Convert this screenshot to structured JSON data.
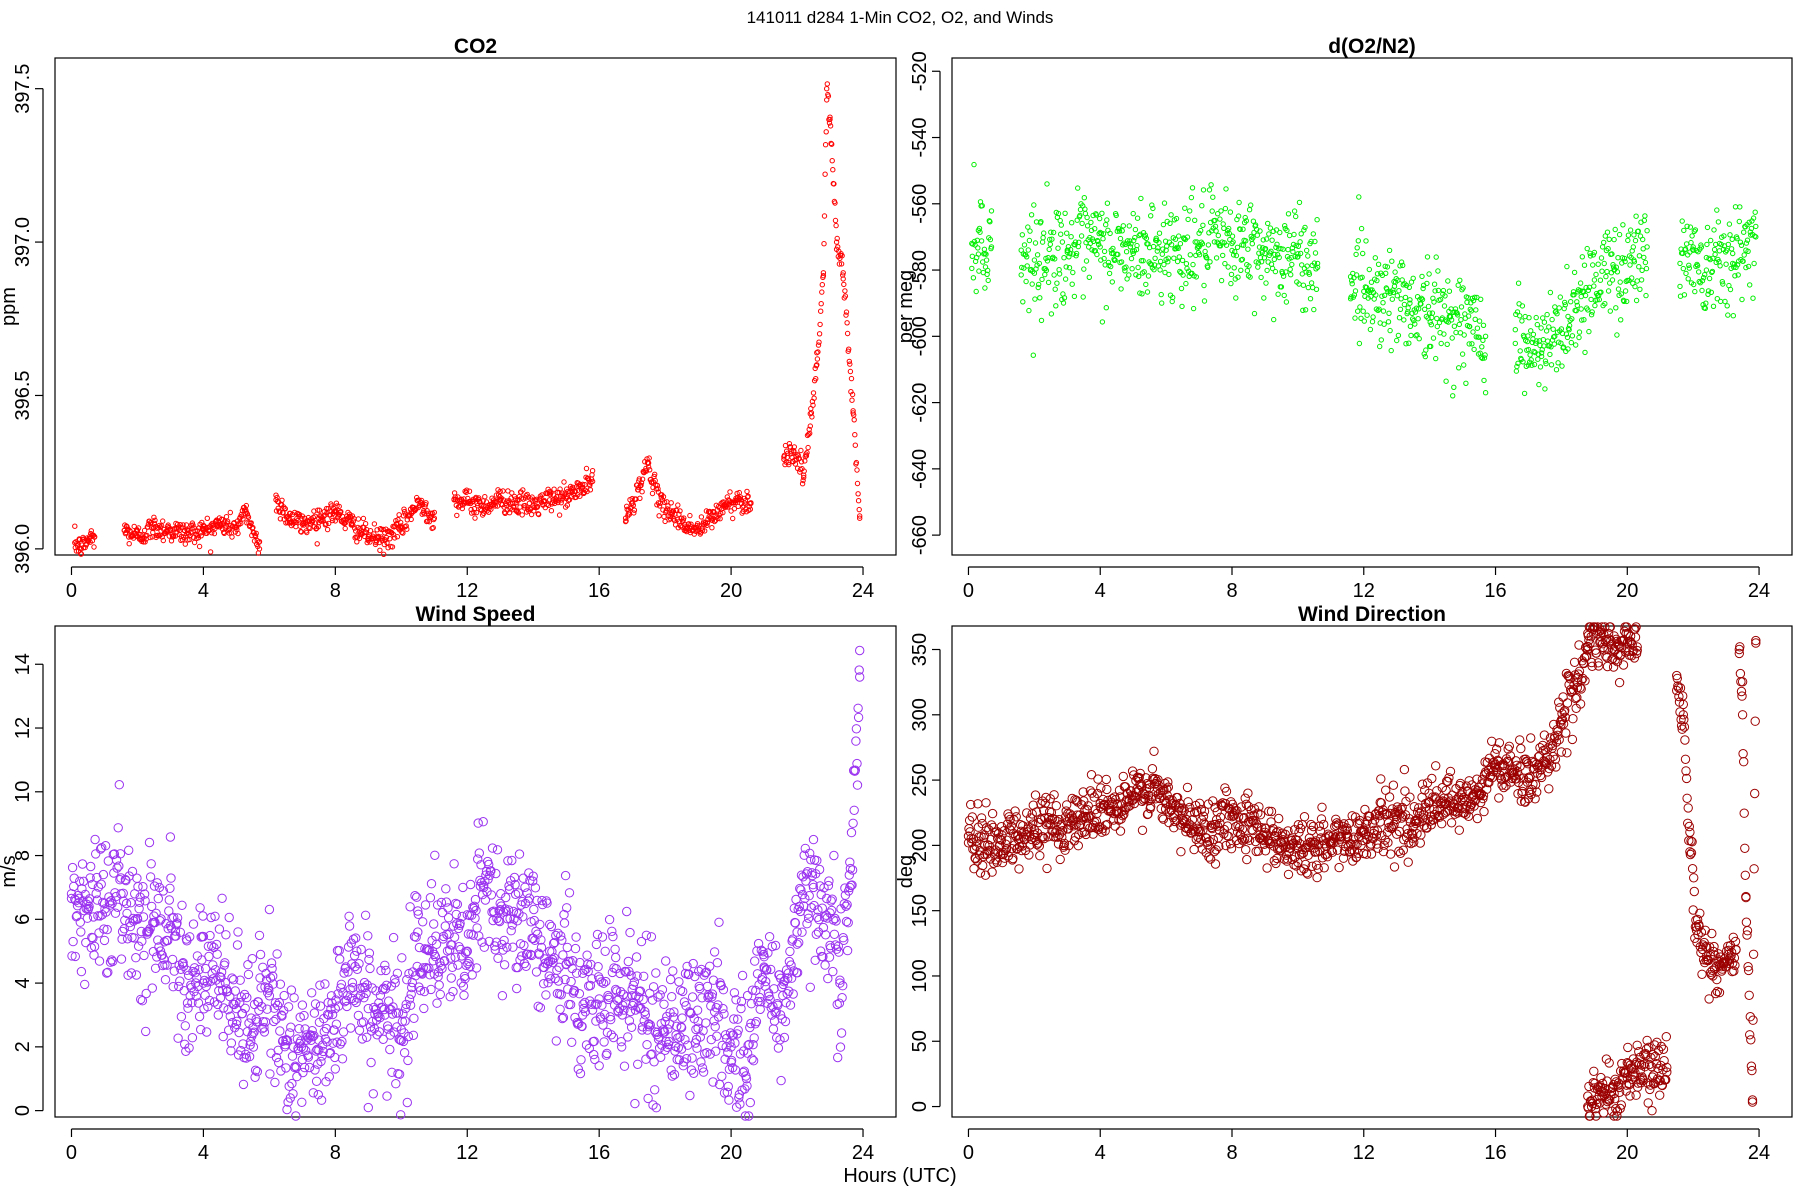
{
  "figure": {
    "title": "141011   d284   1-Min CO2, O2, and Winds",
    "xlabel": "Hours (UTC)"
  },
  "chart_data": [
    {
      "type": "scatter",
      "title": "CO2",
      "xlabel": "",
      "ylabel": "ppm",
      "color": "#ff0000",
      "xlim": [
        -0.5,
        25
      ],
      "ylim": [
        395.98,
        397.6
      ],
      "xticks": [
        0,
        4,
        8,
        12,
        16,
        20,
        24
      ],
      "yticks": [
        396.0,
        396.5,
        397.0,
        397.5
      ],
      "ytick_labels": [
        "396.0",
        "396.5",
        "397.0",
        "397.5"
      ],
      "grid": false,
      "series": [
        {
          "segments": [
            {
              "x": [
                0.1,
                0.3,
                0.5,
                0.7
              ],
              "y": [
                396.02,
                396.0,
                396.03,
                396.04
              ]
            },
            {
              "x": [
                1.6,
                2.0,
                2.5,
                3.0,
                3.5,
                4.0,
                4.5,
                5.0,
                5.3,
                5.7
              ],
              "y": [
                396.06,
                396.04,
                396.07,
                396.06,
                396.05,
                396.06,
                396.08,
                396.07,
                396.12,
                396.0
              ]
            },
            {
              "x": [
                6.2,
                6.6,
                7.0,
                7.5,
                8.0,
                8.5,
                9.0,
                9.5,
                10.0,
                10.3,
                10.6,
                11.0
              ],
              "y": [
                396.16,
                396.1,
                396.08,
                396.1,
                396.12,
                396.08,
                396.04,
                396.03,
                396.07,
                396.12,
                396.15,
                396.1
              ]
            },
            {
              "x": [
                11.6,
                12.0,
                12.5,
                13.0,
                13.5,
                14.0,
                14.5,
                15.0,
                15.5,
                15.8
              ],
              "y": [
                396.16,
                396.15,
                396.14,
                396.16,
                396.15,
                396.14,
                396.16,
                396.17,
                396.2,
                396.22
              ]
            },
            {
              "x": [
                16.8,
                17.2,
                17.5,
                17.8,
                18.2,
                18.6,
                19.0,
                19.4,
                19.8,
                20.2,
                20.6
              ],
              "y": [
                396.1,
                396.2,
                396.28,
                396.15,
                396.12,
                396.08,
                396.06,
                396.1,
                396.14,
                396.16,
                396.15
              ]
            },
            {
              "x": [
                21.6,
                21.9,
                22.2,
                22.4,
                22.6,
                22.8,
                22.9,
                23.0,
                23.2,
                23.4,
                23.7,
                23.9
              ],
              "y": [
                396.3,
                396.32,
                396.24,
                396.4,
                396.6,
                396.9,
                397.5,
                397.4,
                397.0,
                396.9,
                396.45,
                396.1
              ]
            }
          ]
        }
      ]
    },
    {
      "type": "scatter",
      "title": "d(O2/N2)",
      "xlabel": "",
      "ylabel": "per meg",
      "color": "#00ee00",
      "xlim": [
        -0.5,
        25
      ],
      "ylim": [
        -666,
        -516
      ],
      "xticks": [
        0,
        4,
        8,
        12,
        16,
        20,
        24
      ],
      "yticks": [
        -660,
        -640,
        -620,
        -600,
        -580,
        -560,
        -540,
        -520
      ],
      "grid": false,
      "series": [
        {
          "segments": [
            {
              "x": [
                0.1,
                0.3,
                0.5,
                0.7
              ],
              "y": [
                -572,
                -568,
                -575,
                -573
              ]
            },
            {
              "x": [
                1.6,
                2.0,
                3.0,
                4.0,
                5.0,
                6.0,
                7.0,
                8.0,
                9.0,
                10.0,
                10.6
              ],
              "y": [
                -574,
                -577,
                -574,
                -573,
                -575,
                -574,
                -573,
                -572,
                -575,
                -576,
                -578
              ]
            },
            {
              "x": [
                11.6,
                12.2,
                12.8,
                13.4,
                14.0,
                14.6,
                15.2,
                15.7
              ],
              "y": [
                -582,
                -586,
                -587,
                -590,
                -593,
                -594,
                -597,
                -600
              ]
            },
            {
              "x": [
                16.6,
                17.0,
                17.4,
                17.8,
                18.2,
                18.6,
                19.0,
                19.6,
                20.2,
                20.6
              ],
              "y": [
                -598,
                -604,
                -605,
                -600,
                -594,
                -588,
                -583,
                -580,
                -577,
                -573
              ]
            },
            {
              "x": [
                21.6,
                22.0,
                22.4,
                22.8,
                23.2,
                23.6,
                23.9
              ],
              "y": [
                -578,
                -574,
                -580,
                -572,
                -578,
                -574,
                -570
              ]
            }
          ]
        }
      ]
    },
    {
      "type": "scatter",
      "title": "Wind Speed",
      "xlabel": "",
      "ylabel": "m/s",
      "color": "#9a32f0",
      "xlim": [
        -0.5,
        25
      ],
      "ylim": [
        -0.2,
        15.2
      ],
      "xticks": [
        0,
        4,
        8,
        12,
        16,
        20,
        24
      ],
      "yticks": [
        0,
        2,
        4,
        6,
        8,
        10,
        12,
        14
      ],
      "grid": false,
      "series": [
        {
          "segments": [
            {
              "x": [
                0,
                0.5,
                1.0,
                1.5,
                2.0,
                2.5,
                3.0,
                3.5,
                4.0,
                4.5,
                5.0,
                5.5,
                6.0,
                6.5,
                7.0,
                7.5,
                8.0,
                8.5,
                9.0,
                9.5,
                10.0,
                10.5,
                11.0,
                11.5,
                12.0,
                12.5,
                13.0,
                13.5,
                14.0,
                14.5,
                15.0,
                15.5,
                16.0,
                16.5,
                17.0,
                17.5,
                18.0,
                18.5,
                19.0,
                19.5,
                20.0,
                20.5,
                21.0,
                21.5,
                22.0,
                22.5,
                23.0,
                23.3,
                23.6,
                23.9
              ],
              "y": [
                6.8,
                6.3,
                6.5,
                6.8,
                6.0,
                5.9,
                5.8,
                4.4,
                4.0,
                4.2,
                3.2,
                2.6,
                3.6,
                2.2,
                1.6,
                1.9,
                3.2,
                4.6,
                3.2,
                3.0,
                2.2,
                5.6,
                4.9,
                5.2,
                5.0,
                7.0,
                6.5,
                6.2,
                5.4,
                5.0,
                4.6,
                3.0,
                3.5,
                3.8,
                3.6,
                2.7,
                2.8,
                2.6,
                2.8,
                3.1,
                2.0,
                1.8,
                4.5,
                3.0,
                5.6,
                7.0,
                6.2,
                4.0,
                7.0,
                13.6
              ]
            }
          ]
        }
      ]
    },
    {
      "type": "scatter",
      "title": "Wind Direction",
      "xlabel": "",
      "ylabel": "deg",
      "color": "#9c0000",
      "xlim": [
        -0.5,
        25
      ],
      "ylim": [
        -8,
        368
      ],
      "xticks": [
        0,
        4,
        8,
        12,
        16,
        20,
        24
      ],
      "yticks": [
        0,
        50,
        100,
        150,
        200,
        250,
        300,
        350
      ],
      "grid": false,
      "series": [
        {
          "segments": [
            {
              "x": [
                0,
                0.5,
                1.0,
                1.5,
                2.0,
                2.5,
                3.0,
                3.5,
                4.0,
                4.5,
                5.0,
                5.5,
                6.0,
                6.5,
                7.0,
                7.5,
                8.0,
                8.5,
                9.0,
                9.5,
                10.0,
                10.5,
                11.0,
                11.5,
                12.0,
                12.5,
                13.0,
                13.5,
                14.0,
                14.5,
                15.0,
                15.5,
                16.0,
                16.5,
                17.0,
                17.5,
                18.0,
                18.5,
                18.8
              ],
              "y": [
                202,
                200,
                204,
                208,
                212,
                216,
                218,
                222,
                232,
                226,
                238,
                244,
                232,
                220,
                212,
                216,
                222,
                218,
                210,
                202,
                198,
                198,
                202,
                206,
                210,
                218,
                220,
                214,
                228,
                232,
                228,
                240,
                262,
                256,
                252,
                264,
                296,
                325,
                350
              ]
            },
            {
              "x": [
                18.8,
                19.2,
                19.6,
                20.0,
                20.3
              ],
              "y": [
                352,
                356,
                350,
                355,
                352
              ]
            },
            {
              "x": [
                18.8,
                19.2,
                19.6,
                20.0,
                20.4,
                20.8,
                21.2
              ],
              "y": [
                8,
                12,
                10,
                22,
                28,
                24,
                30
              ]
            },
            {
              "x": [
                21.5,
                21.7,
                21.9,
                22.1,
                22.4,
                22.8,
                23.1,
                23.3
              ],
              "y": [
                330,
                300,
                210,
                135,
                115,
                108,
                112,
                120
              ]
            },
            {
              "x": [
                23.4,
                23.5,
                23.6,
                23.8,
                23.9
              ],
              "y": [
                350,
                300,
                160,
                5,
                355
              ]
            }
          ]
        }
      ]
    }
  ]
}
